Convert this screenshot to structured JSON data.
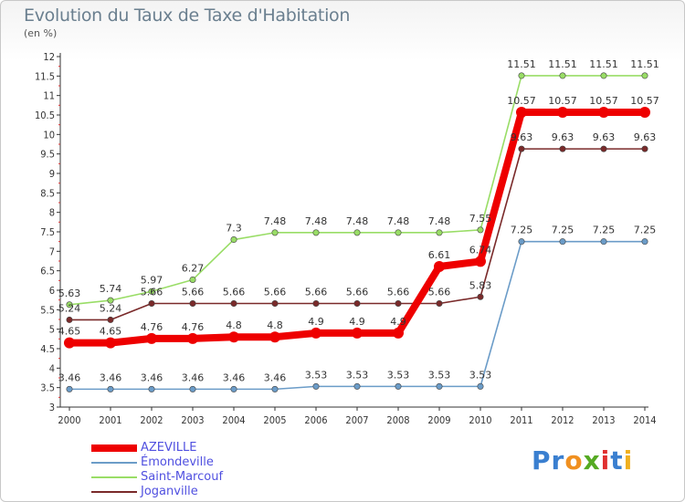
{
  "header": {
    "title": "Evolution du Taux de Taxe d'Habitation",
    "unit": "(en %)"
  },
  "logo": {
    "text": "Proxiti",
    "letters": [
      "P",
      "r",
      "o",
      "x",
      "i",
      "t",
      "i"
    ],
    "colors": [
      "#3a7fd0",
      "#3a7fd0",
      "#f09020",
      "#55aa22",
      "#e03030",
      "#3a7fd0",
      "#f0b020"
    ]
  },
  "chart_data": {
    "type": "line",
    "title": "Evolution du Taux de Taxe d'Habitation",
    "ylabel": "(en %)",
    "xlabel": "",
    "x": [
      "2000",
      "2001",
      "2002",
      "2003",
      "2004",
      "2005",
      "2006",
      "2007",
      "2008",
      "2009",
      "2010",
      "2011",
      "2012",
      "2013",
      "2014"
    ],
    "ylim": [
      3,
      12
    ],
    "yticks": [
      "3",
      "3.5",
      "4",
      "4.5",
      "5",
      "5.5",
      "6",
      "6.5",
      "7",
      "7.5",
      "8",
      "8.5",
      "9",
      "9.5",
      "10",
      "10.5",
      "11",
      "11.5",
      "12"
    ],
    "grid": false,
    "legend_position": "bottom-left",
    "series": [
      {
        "name": "AZEVILLE",
        "color": "#ee0000",
        "emphasis": true,
        "values": [
          4.65,
          4.65,
          4.76,
          4.76,
          4.8,
          4.8,
          4.9,
          4.9,
          4.9,
          6.61,
          6.74,
          10.57,
          10.57,
          10.57,
          10.57
        ],
        "labels": [
          "4.65",
          "4.65",
          "4.76",
          "4.76",
          "4.8",
          "4.8",
          "4.9",
          "4.9",
          "4.9",
          "6.61",
          "6.74",
          "10.57",
          "10.57",
          "10.57",
          "10.57"
        ]
      },
      {
        "name": "Émondeville",
        "color": "#6b9cc8",
        "values": [
          3.46,
          3.46,
          3.46,
          3.46,
          3.46,
          3.46,
          3.53,
          3.53,
          3.53,
          3.53,
          3.53,
          7.25,
          7.25,
          7.25,
          7.25
        ],
        "labels": [
          "3.46",
          "3.46",
          "3.46",
          "3.46",
          "3.46",
          "3.46",
          "3.53",
          "3.53",
          "3.53",
          "3.53",
          "3.53",
          "7.25",
          "7.25",
          "7.25",
          "7.25"
        ]
      },
      {
        "name": "Saint-Marcouf",
        "color": "#99dd66",
        "values": [
          5.63,
          5.74,
          5.97,
          6.27,
          7.3,
          7.48,
          7.48,
          7.48,
          7.48,
          7.48,
          7.55,
          11.51,
          11.51,
          11.51,
          11.51
        ],
        "labels": [
          "5.63",
          "5.74",
          "5.97",
          "6.27",
          "7.3",
          "7.48",
          "7.48",
          "7.48",
          "7.48",
          "7.48",
          "7.55",
          "11.51",
          "11.51",
          "11.51",
          "11.51"
        ]
      },
      {
        "name": "Joganville",
        "color": "#7a2a2a",
        "values": [
          5.24,
          5.24,
          5.66,
          5.66,
          5.66,
          5.66,
          5.66,
          5.66,
          5.66,
          5.66,
          5.83,
          9.63,
          9.63,
          9.63,
          9.63
        ],
        "labels": [
          "5.24",
          "5.24",
          "5.66",
          "5.66",
          "5.66",
          "5.66",
          "5.66",
          "5.66",
          "5.66",
          "5.66",
          "5.83",
          "9.63",
          "9.63",
          "9.63",
          "9.63"
        ]
      }
    ]
  }
}
